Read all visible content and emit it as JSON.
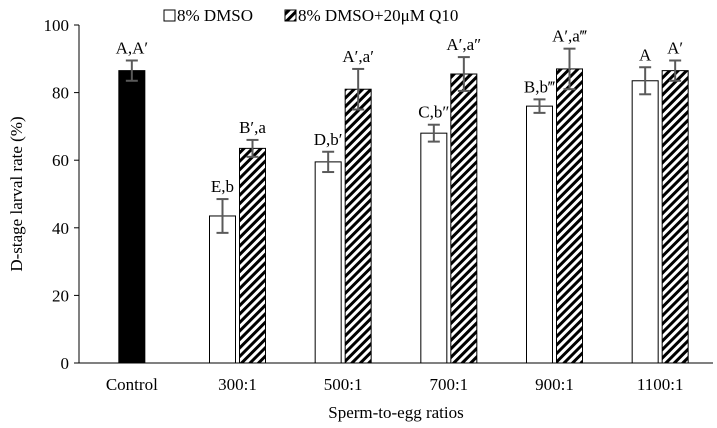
{
  "chart_data": {
    "type": "bar",
    "title": "",
    "xlabel": "Sperm-to-egg ratios",
    "ylabel": "D-stage larval rate (%)",
    "ylim": [
      0,
      100
    ],
    "yticks": [
      0,
      20,
      40,
      60,
      80,
      100
    ],
    "grid": false,
    "legend_position": "top",
    "categories": [
      "Control",
      "300:1",
      "500:1",
      "700:1",
      "900:1",
      "1100:1"
    ],
    "control": {
      "value": 86.5,
      "error": 3,
      "label": "A,A′",
      "color": "#000000"
    },
    "series": [
      {
        "name": "8% DMSO",
        "pattern": "solid-white",
        "values": [
          null,
          43.5,
          59.5,
          68,
          76,
          83.5
        ],
        "errors": [
          null,
          5,
          3,
          2.5,
          2,
          4
        ],
        "labels": [
          "",
          "E,b",
          "D,b′",
          "C,b″",
          "B,b‴",
          "A"
        ]
      },
      {
        "name": "8% DMSO+20μM Q10",
        "pattern": "diagonal-hatch",
        "values": [
          null,
          63.5,
          81,
          85.5,
          87,
          86.5
        ],
        "errors": [
          null,
          2.5,
          6,
          5,
          6,
          3
        ],
        "labels": [
          "",
          "B′,a",
          "A′,a′",
          "A′,a″",
          "A′,a‴",
          "A′"
        ]
      }
    ]
  }
}
